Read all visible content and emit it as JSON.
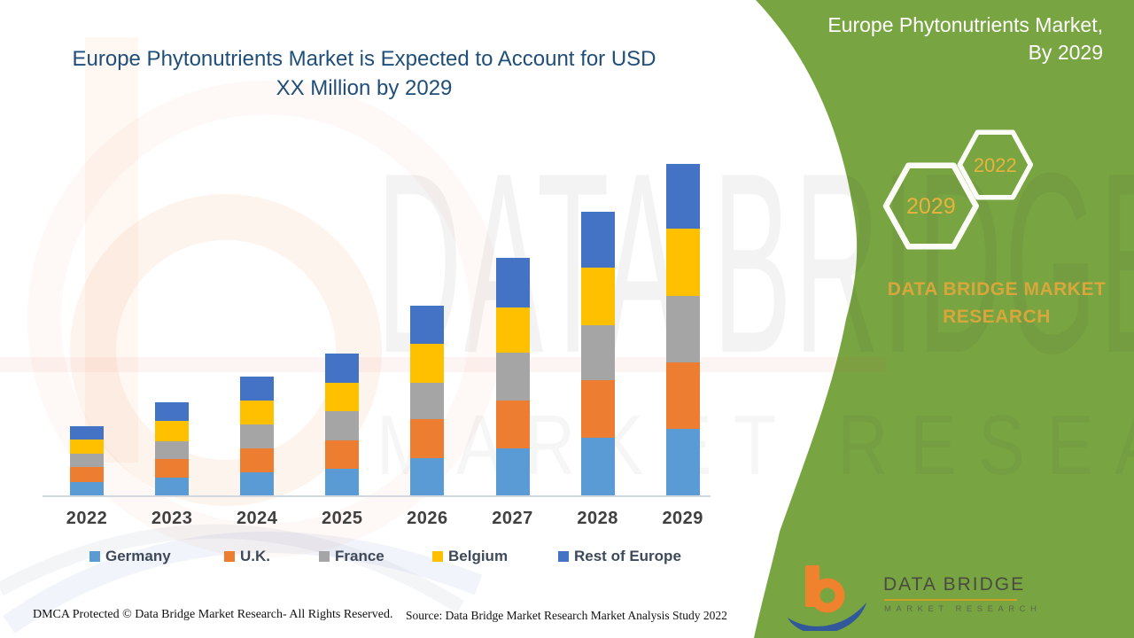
{
  "header": {
    "title_line1": "Europe Phytonutrients Market is Expected to Account for USD",
    "title_line2": "XX Million by 2029"
  },
  "side_panel": {
    "heading_line1": "Europe Phytonutrients Market,",
    "heading_line2": "By 2029",
    "hexagons": [
      {
        "label": "2029"
      },
      {
        "label": "2022"
      }
    ],
    "brand_line1": "DATA BRIDGE MARKET",
    "brand_line2": "RESEARCH",
    "panel_color": "#78A441",
    "accent_gold": "#E2A93B"
  },
  "chart_data": {
    "type": "bar",
    "stacked": true,
    "title": "Europe Phytonutrients Market is Expected to Account for USD XX Million by 2029",
    "xlabel": "",
    "ylabel": "",
    "value_axis_visible": false,
    "grid": false,
    "legend_position": "bottom",
    "note": "No value axis is shown in the figure; series values are relative stacked-segment heights read from the bars (arbitrary units).",
    "categories": [
      "2022",
      "2023",
      "2024",
      "2025",
      "2026",
      "2027",
      "2028",
      "2029"
    ],
    "series": [
      {
        "name": "Germany",
        "color": "#5B9BD5",
        "values": [
          16,
          21,
          27,
          31,
          43,
          54,
          66,
          76
        ]
      },
      {
        "name": "U.K.",
        "color": "#ED7D31",
        "values": [
          17,
          21,
          27,
          32,
          44,
          54,
          65,
          75
        ]
      },
      {
        "name": "France",
        "color": "#A5A5A5",
        "values": [
          15,
          20,
          27,
          33,
          41,
          54,
          62,
          75
        ]
      },
      {
        "name": "Belgium",
        "color": "#FFC000",
        "values": [
          16,
          23,
          27,
          32,
          44,
          51,
          65,
          76
        ]
      },
      {
        "name": "Rest of Europe",
        "color": "#4472C4",
        "values": [
          15,
          21,
          27,
          33,
          43,
          56,
          63,
          73
        ]
      }
    ],
    "totals": [
      79,
      106,
      135,
      161,
      215,
      269,
      321,
      375
    ]
  },
  "watermark": {
    "line1": "DATA BRIDGE",
    "line2": "MARKET RESEARCH"
  },
  "logo": {
    "name": "DATA BRIDGE",
    "subtitle": "MARKET RESEARCH"
  },
  "footer": {
    "dmca": "DMCA Protected © Data Bridge Market Research- All Rights Reserved.",
    "source": "Source: Data Bridge Market Research Market Analysis Study 2022"
  }
}
